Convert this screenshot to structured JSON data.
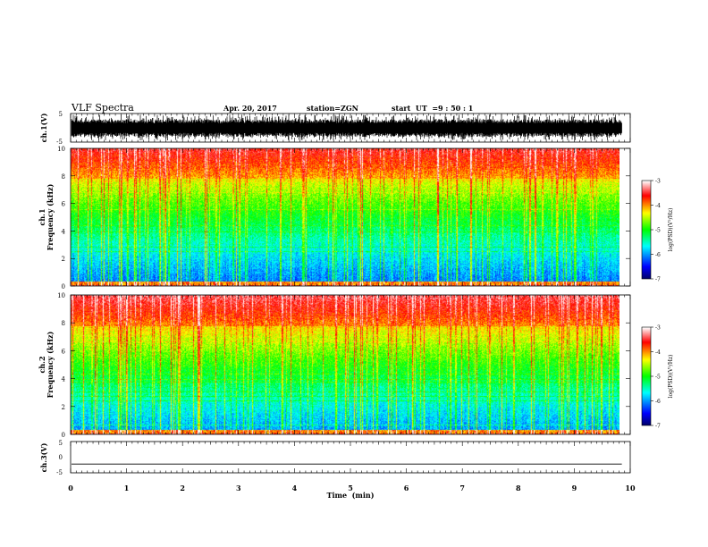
{
  "header": {
    "title": "VLF Spectra",
    "date": "Apr. 20, 2017",
    "station": "station=ZGN",
    "start_label": "start  UT  =",
    "start_time": "9 : 50 : 1"
  },
  "chart_data": [
    {
      "type": "line",
      "panel": "ch1-waveform",
      "ylabel": "ch.1(V)",
      "ylim": [
        -5,
        5
      ],
      "yticks": [
        "5",
        "-5"
      ],
      "xlim": [
        0,
        10
      ],
      "description_level": "dense broadband noise between about -4 and 4 V"
    },
    {
      "type": "heatmap",
      "panel": "ch1-spectrogram",
      "ylabel_top": "ch.1",
      "ylabel": "Frequency (kHz)",
      "ylim": [
        0,
        10
      ],
      "yticks": [
        "0",
        "2",
        "4",
        "6",
        "8",
        "10"
      ],
      "xlim": [
        0,
        10
      ],
      "data_end_min": 9.85,
      "colorbar": {
        "label": "log(PSD)(V²/Hz)",
        "range": [
          -7,
          -3
        ],
        "ticks": [
          "-3",
          "-4",
          "-5",
          "-6",
          "-7"
        ]
      }
    },
    {
      "type": "heatmap",
      "panel": "ch2-spectrogram",
      "ylabel_top": "ch.2",
      "ylabel": "Frequency (kHz)",
      "ylim": [
        0,
        10
      ],
      "yticks": [
        "0",
        "2",
        "4",
        "6",
        "8",
        "10"
      ],
      "xlim": [
        0,
        10
      ],
      "data_end_min": 9.85,
      "colorbar": {
        "label": "log(PSD)(V²/Hz)",
        "range": [
          -7,
          -3
        ],
        "ticks": [
          "-3",
          "-4",
          "-5",
          "-6",
          "-7"
        ]
      }
    },
    {
      "type": "line",
      "panel": "ch3-waveform",
      "ylabel": "ch.3(V)",
      "ylim": [
        -5,
        5
      ],
      "yticks": [
        "5",
        "0",
        "-5"
      ],
      "xlim": [
        0,
        10
      ],
      "constant_value": -2.2
    }
  ],
  "xaxis": {
    "label": "Time  (min)",
    "ticks": [
      "0",
      "1",
      "2",
      "3",
      "4",
      "5",
      "6",
      "7",
      "8",
      "9",
      "10"
    ]
  },
  "colors": {
    "colormap": [
      "#00006e",
      "#0000ff",
      "#00ffff",
      "#00ff00",
      "#ffff00",
      "#ff0000",
      "#ffffff"
    ]
  }
}
